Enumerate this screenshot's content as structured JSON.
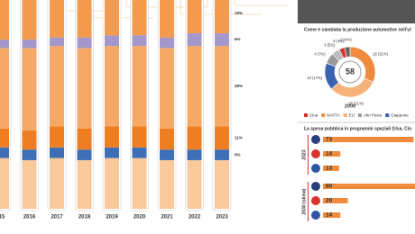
{
  "chart_data": [
    {
      "type": "stacked-bar",
      "categories": [
        "15",
        "2016",
        "2017",
        "2018",
        "2019",
        "2020",
        "2021",
        "2022",
        "2023"
      ],
      "ylim": [
        0,
        100
      ],
      "series": [
        {
          "color": "#f9c89b",
          "values": [
            24,
            23,
            24,
            23,
            24,
            24,
            23,
            23,
            23
          ]
        },
        {
          "color": "#3d6fb6",
          "values": [
            5,
            5,
            5,
            5,
            5,
            5,
            5,
            5,
            5
          ],
          "value_labels": [
            null,
            null,
            null,
            null,
            null,
            null,
            null,
            null,
            "5%"
          ]
        },
        {
          "color": "#ef7d22",
          "values": [
            9,
            9,
            10,
            10,
            10,
            10,
            10,
            11,
            11
          ],
          "value_labels": [
            null,
            null,
            null,
            null,
            null,
            null,
            null,
            null,
            "11%"
          ]
        },
        {
          "color": "#f6a867",
          "values": [
            38,
            39,
            38,
            38,
            38,
            38,
            38,
            38,
            38
          ],
          "value_labels": [
            null,
            null,
            null,
            null,
            null,
            null,
            null,
            null,
            "38%"
          ]
        },
        {
          "color": "#a397cc",
          "values": [
            4,
            4,
            4,
            5,
            5,
            5,
            5,
            6,
            6
          ],
          "value_labels": [
            null,
            null,
            null,
            null,
            null,
            null,
            null,
            null,
            "6%"
          ]
        },
        {
          "color": "#f39a4e",
          "values": [
            20,
            20,
            19,
            19,
            18,
            18,
            19,
            17,
            19
          ],
          "value_labels": [
            null,
            null,
            null,
            null,
            null,
            null,
            null,
            null,
            "19%"
          ]
        }
      ]
    },
    {
      "type": "donut",
      "title": "Come è cambiata la produzione automotive nell'ul",
      "total": 58,
      "year": "2000",
      "values": [
        18,
        18,
        10,
        4,
        3,
        2,
        2
      ],
      "value_labels": [
        "18 (31%)",
        "18 (31%)",
        "10 (17%)",
        "4 (7%)",
        "3 (5%)",
        "2 (4%)",
        "2 (4%)"
      ],
      "colors": [
        "#f08a3c",
        "#f7b27a",
        "#3a64b0",
        "#999999",
        "#bbbbbb",
        "#d9342b",
        "#666666"
      ],
      "legend": [
        {
          "name": "Cina",
          "color": "#d9342b"
        },
        {
          "name": "NAFTA",
          "color": "#f08a3c"
        },
        {
          "name": "EU",
          "color": "#f7b27a"
        },
        {
          "name": "Altri Paesi",
          "color": "#999999"
        },
        {
          "name": "Giappone",
          "color": "#3a64b0"
        }
      ]
    },
    {
      "type": "barh",
      "title": "La spesa pubblica in programmi spaziali (Usa, Cin",
      "xlim": [
        0,
        80
      ],
      "groups": [
        {
          "label": "2023",
          "values": [
            73,
            14,
            13
          ]
        },
        {
          "label": "2030 (stima)",
          "values": [
            80,
            20,
            14
          ]
        }
      ]
    }
  ]
}
